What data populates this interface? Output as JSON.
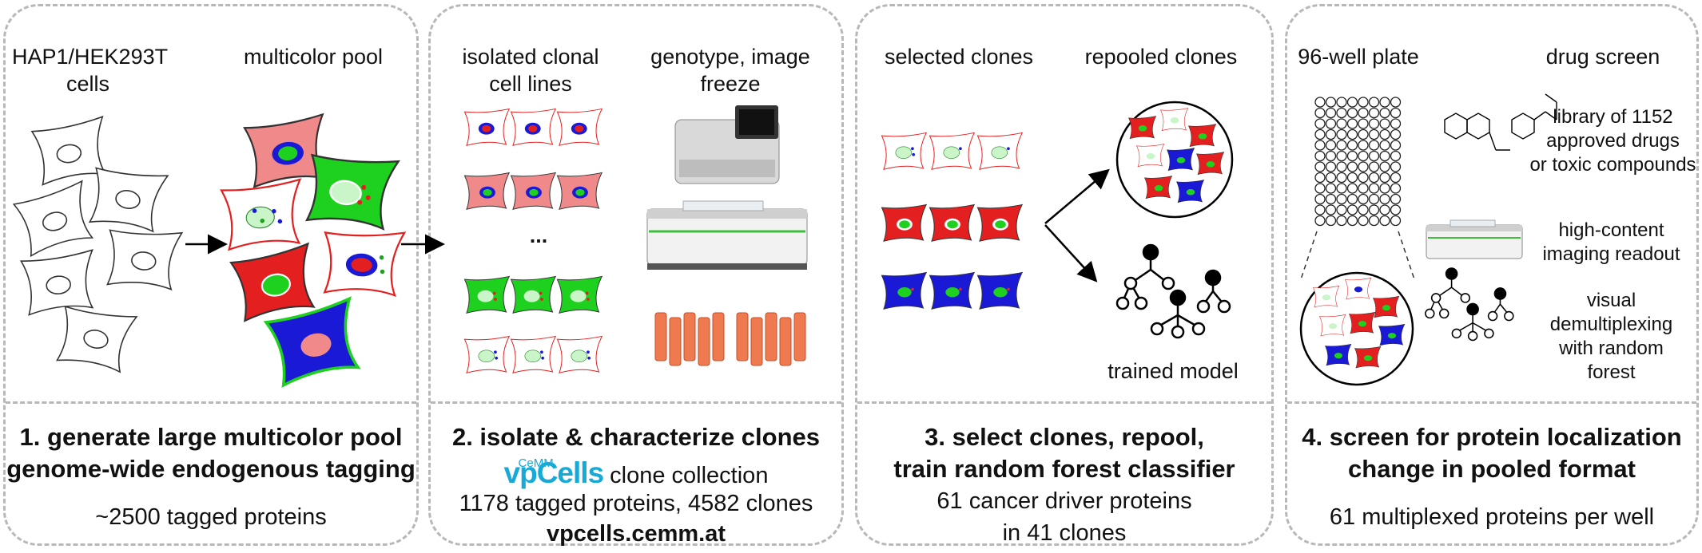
{
  "panel1": {
    "label_cells": "HAP1/HEK293T\ncells",
    "label_pool": "multicolor pool",
    "title": "1. generate large multicolor pool\ngenome-wide endogenous tagging",
    "subtitle": "~2500 tagged proteins"
  },
  "panel2": {
    "label_isolated": "isolated clonal\ncell lines",
    "label_genotype": "genotype, image\nfreeze",
    "ellipsis": "...",
    "title": "2. isolate & characterize clones",
    "logo_small": "CeMM",
    "logo_big": "vpCells",
    "collection": "clone collection",
    "stats": "1178 tagged proteins, 4582 clones",
    "url": "vpcells.cemm.at"
  },
  "panel3": {
    "label_selected": "selected clones",
    "label_repooled": "repooled clones",
    "label_model": "trained model",
    "title": "3. select clones, repool,\ntrain random forest classifier",
    "subtitle": "61 cancer driver proteins\nin 41 clones"
  },
  "panel4": {
    "label_plate": "96-well plate",
    "label_drug": "drug screen",
    "label_library": "library of 1152\napproved drugs\nor toxic compounds",
    "label_imaging": "high-content\nimaging readout",
    "label_demux": "visual\ndemultiplexing\nwith random\nforest",
    "title": "4. screen for protein localization\nchange in pooled format",
    "subtitle": "61 multiplexed proteins per well"
  },
  "colors": {
    "border": "#b8b8b8",
    "red_cell": "#e41f1f",
    "green_cell": "#1fd11f",
    "blue_cell": "#1a1ad6",
    "pink_cell": "#f08a8a",
    "logo_blue": "#19a9d6",
    "tube_orange": "#f07a50"
  }
}
